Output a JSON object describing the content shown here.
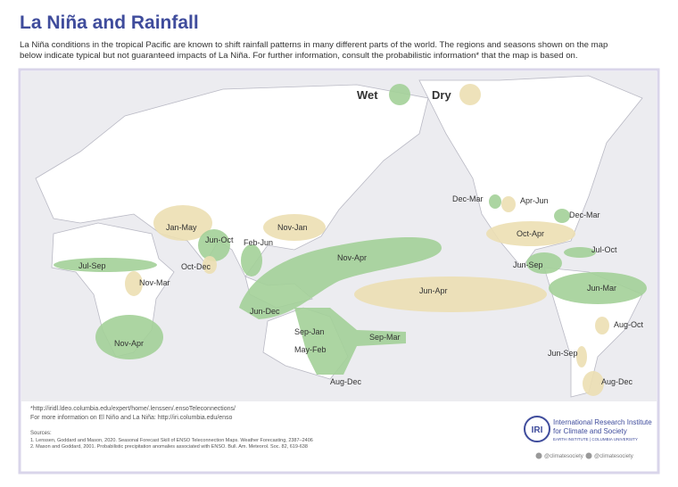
{
  "header": {
    "title": "La Niña and Rainfall",
    "intro": [
      "La Niña conditions in the tropical Pacific are known to shift rainfall patterns in many different parts of the world. The regions and seasons shown on the map",
      "below indicate typical but not guaranteed impacts of La Niña. For further information, consult the probabilistic information* that the map is based on."
    ]
  },
  "legend": [
    "Wet",
    "Dry"
  ],
  "regions": [
    "Jul-Sep",
    "Nov-Mar",
    "Nov-Apr",
    "Jan-May",
    "Jun-Oct",
    "Oct-Dec",
    "Feb-Jun",
    "Nov-Jan",
    "Nov-Apr",
    "Jun-Dec",
    "Sep-Jan",
    "May-Feb",
    "Sep-Mar",
    "Aug-Dec",
    "Jun-Apr",
    "Dec-Mar",
    "Apr-Jun",
    "Dec-Mar",
    "Oct-Apr",
    "Jul-Oct",
    "Jun-Sep",
    "Jun-Mar",
    "Aug-Oct",
    "Jun-Sep",
    "Aug-Dec"
  ],
  "footnotes": [
    "*http://iridl.ldeo.columbia.edu/expert/home/.lenssen/.ensoTeleconnections/",
    "For more information on El Niño and La Niña: http://iri.columbia.edu/enso"
  ],
  "sources": {
    "heading": "Sources:",
    "items": [
      "1. Lenssen, Goddard and Mason, 2020. Seasonal Forecast Skill of ENSO Teleconnection Maps. Weather Forecasting, 2387–2406",
      "2. Mason and Goddard, 2001. Probabilistic precipitation anomalies associated with ENSO. Bull. Am. Meteorol. Soc. 82, 619-638"
    ]
  },
  "logo": {
    "mark": "IRI",
    "name": [
      "International Research Institute",
      "for Climate and Society"
    ],
    "affiliation": "EARTH INSTITUTE | COLUMBIA UNIVERSITY"
  },
  "social": [
    "@climatesociety",
    "@climatesociety"
  ]
}
